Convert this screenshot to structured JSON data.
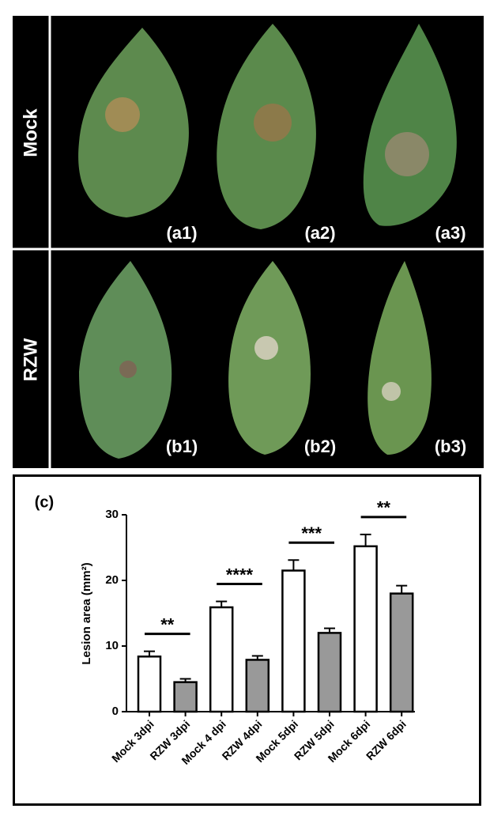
{
  "photo_panel": {
    "rows": [
      "Mock",
      "RZW"
    ],
    "labels": [
      [
        "(a1)",
        "(a2)",
        "(a3)"
      ],
      [
        "(b1)",
        "(b2)",
        "(b3)"
      ]
    ]
  },
  "chart_data": {
    "type": "bar",
    "panel_label": "(c)",
    "y_label": "Lesion area (mm²)",
    "categories": [
      "Mock 3dpi",
      "RZW 3dpi",
      "Mock 4 dpi",
      "RZW 4dpi",
      "Mock 5dpi",
      "RZW 5dpi",
      "Mock 6dpi",
      "RZW 6dpi"
    ],
    "values": [
      8.4,
      4.5,
      15.9,
      7.9,
      21.5,
      12.0,
      25.2,
      18.0
    ],
    "errors": [
      0.8,
      0.5,
      0.9,
      0.6,
      1.6,
      0.7,
      1.8,
      1.2
    ],
    "colors": [
      "#ffffff",
      "#999999",
      "#ffffff",
      "#999999",
      "#ffffff",
      "#999999",
      "#ffffff",
      "#999999"
    ],
    "significance": [
      "**",
      "****",
      "***",
      "**"
    ],
    "ylim": [
      0,
      30
    ],
    "yticks": [
      0,
      10,
      20,
      30
    ],
    "grid": false
  }
}
